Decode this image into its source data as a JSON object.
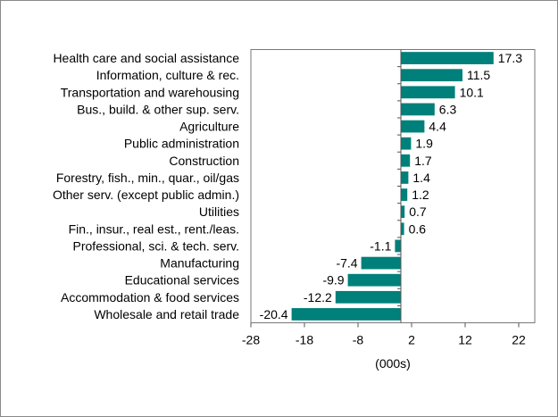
{
  "chart_data": {
    "type": "bar",
    "orientation": "horizontal",
    "categories": [
      "Health care and social assistance",
      "Information, culture & rec.",
      "Transportation and warehousing",
      "Bus., build. & other sup. serv.",
      "Agriculture",
      "Public administration",
      "Construction",
      "Forestry, fish., min., quar., oil/gas",
      "Other serv. (except public admin.)",
      "Utilities",
      "Fin., insur., real est., rent./leas.",
      "Professional, sci. & tech. serv.",
      "Manufacturing",
      "Educational services",
      "Accommodation & food services",
      "Wholesale and retail trade"
    ],
    "values": [
      17.3,
      11.5,
      10.1,
      6.3,
      4.4,
      1.9,
      1.7,
      1.4,
      1.2,
      0.7,
      0.6,
      -1.1,
      -7.4,
      -9.9,
      -12.2,
      -20.4
    ],
    "data_labels": [
      "17.3",
      "11.5",
      "10.1",
      "6.3",
      "4.4",
      "1.9",
      "1.7",
      "1.4",
      "1.2",
      "0.7",
      "0.6",
      "-1.1",
      "-7.4",
      "-9.9",
      "-12.2",
      "-20.4"
    ],
    "xlabel": "(000s)",
    "xticks": [
      -28,
      -18,
      -8,
      2,
      12,
      22
    ],
    "xtick_labels": [
      "-28",
      "-18",
      "-8",
      "2",
      "12",
      "22"
    ],
    "xlim": [
      -28,
      25
    ],
    "grid": false,
    "bar_color": "#00807a"
  }
}
